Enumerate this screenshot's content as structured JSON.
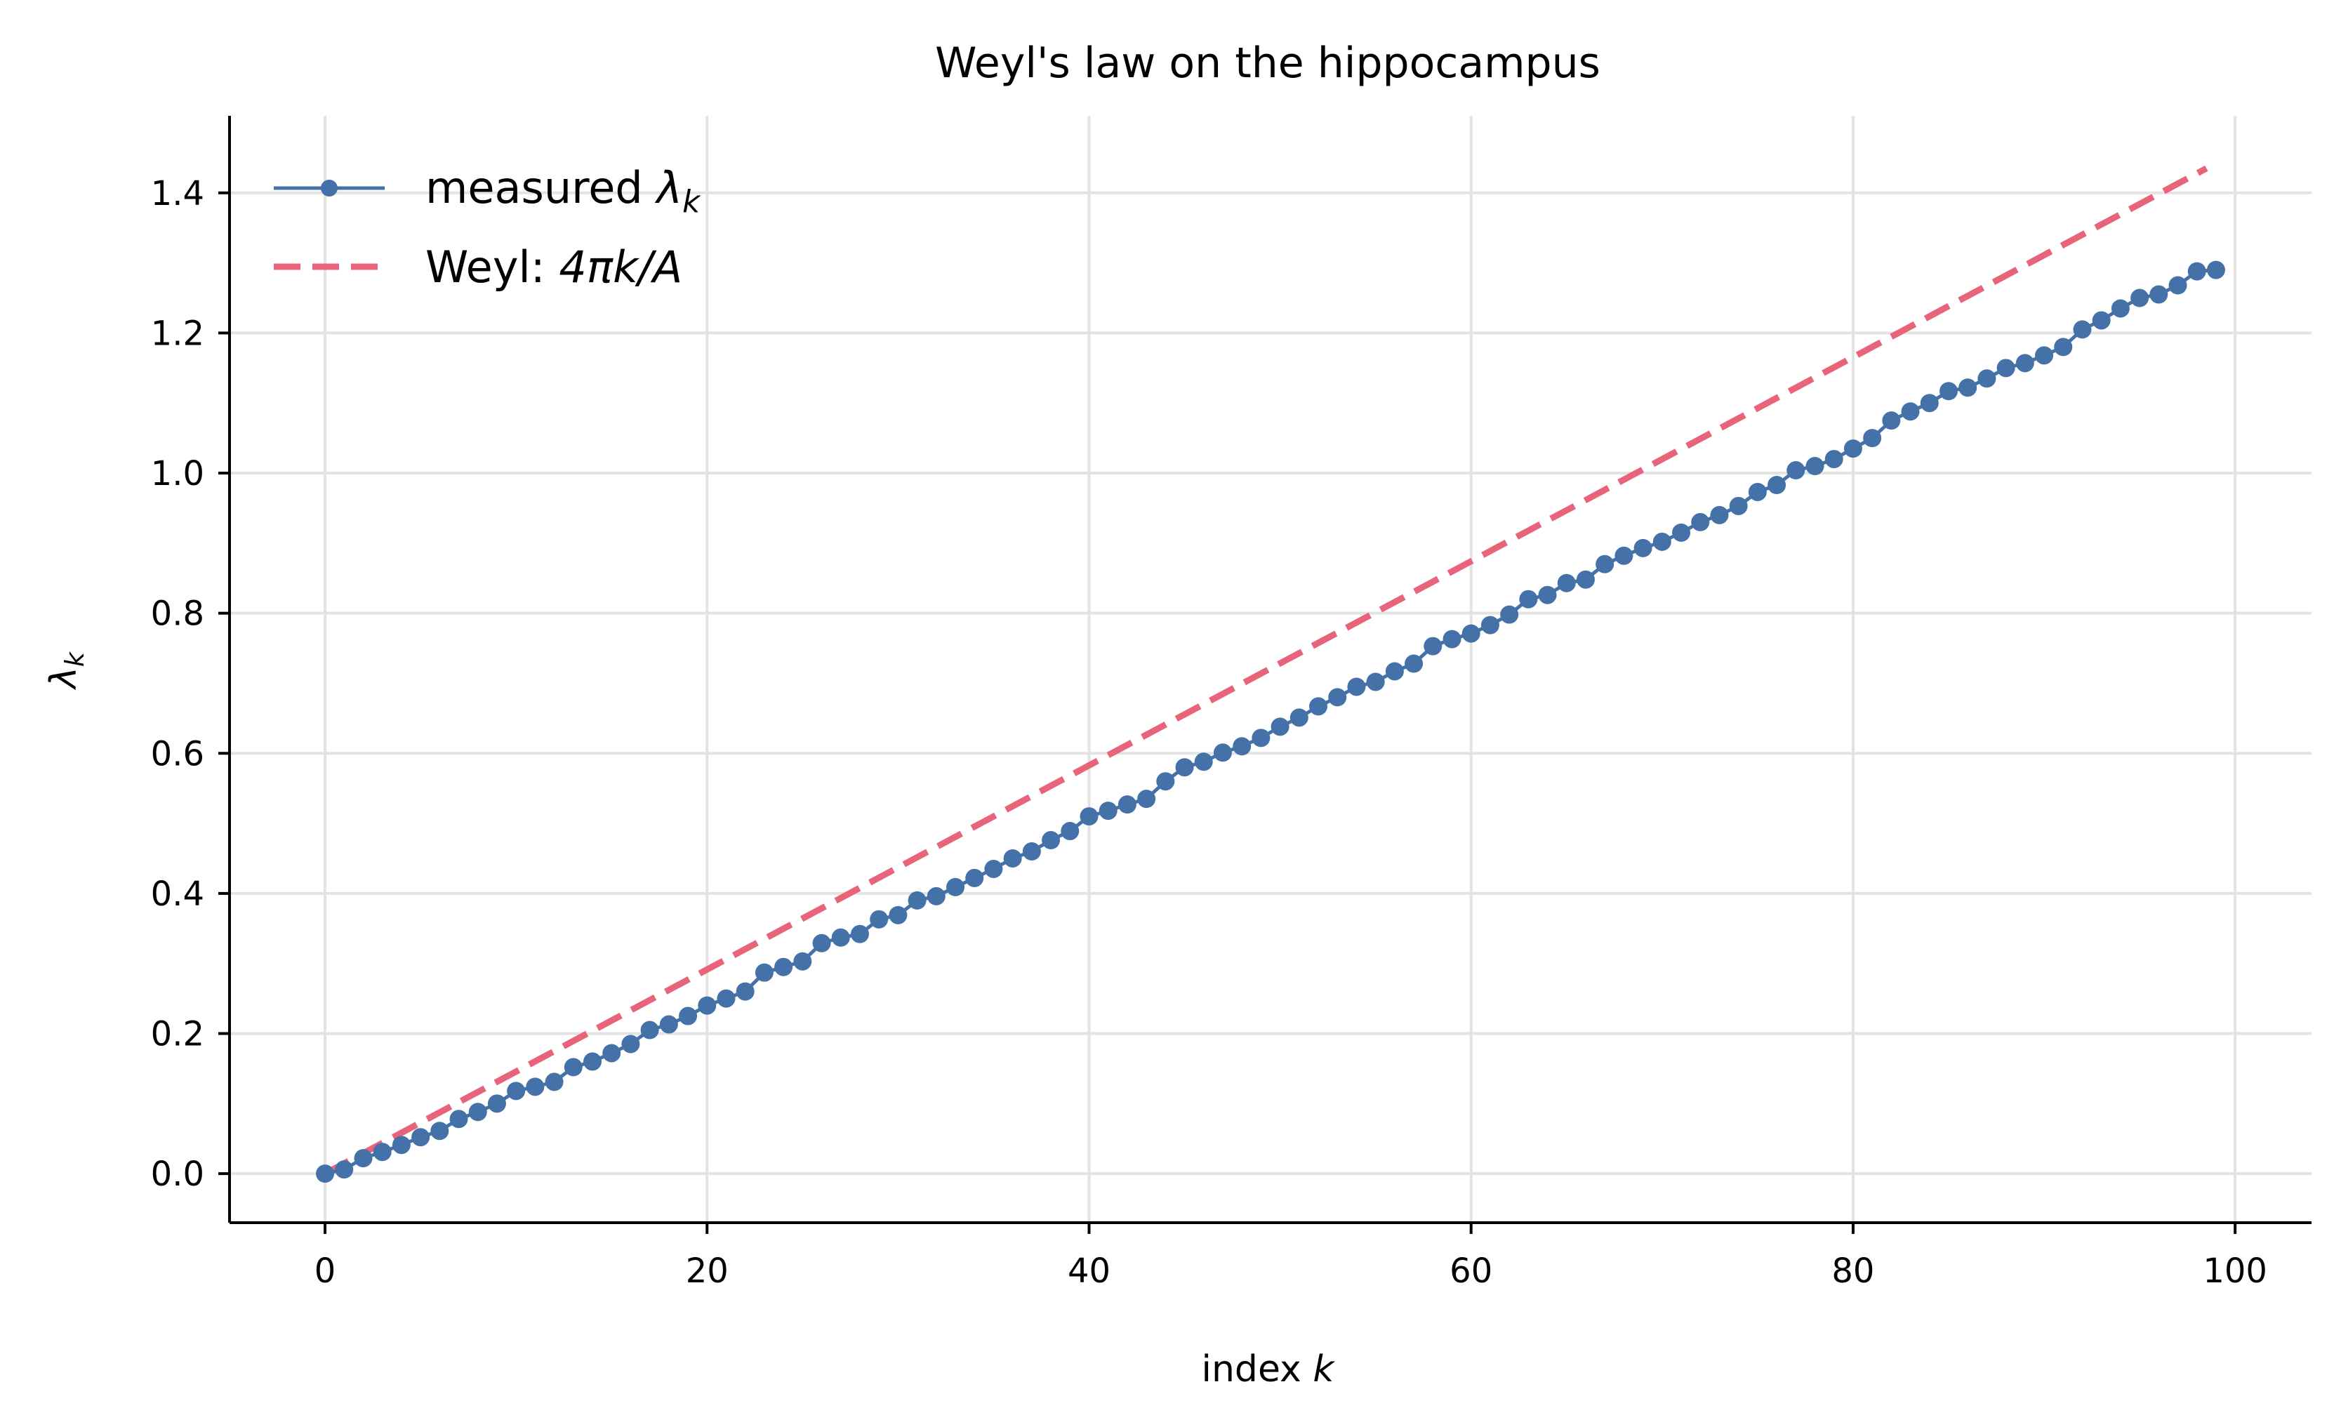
{
  "chart_data": {
    "type": "line",
    "title": "Weyl's law on the hippocampus",
    "xlabel": "index k",
    "ylabel": "λ_k",
    "xlim": [
      -5,
      104
    ],
    "ylim": [
      -0.07,
      1.51
    ],
    "x_ticks": [
      0,
      20,
      40,
      60,
      80,
      100
    ],
    "x_tick_labels": [
      "0",
      "20",
      "40",
      "60",
      "80",
      "100"
    ],
    "y_ticks": [
      0.0,
      0.2,
      0.4,
      0.6,
      0.8,
      1.0,
      1.2,
      1.4
    ],
    "y_tick_labels": [
      "0.0",
      "0.2",
      "0.4",
      "0.6",
      "0.8",
      "1.0",
      "1.2",
      "1.4"
    ],
    "grid": true,
    "legend_position": "top-left",
    "series": [
      {
        "name": "measured λ_k",
        "style": "line-with-markers",
        "color": "#4472a8",
        "x": [
          0,
          1,
          2,
          3,
          4,
          5,
          6,
          7,
          8,
          9,
          10,
          11,
          12,
          13,
          14,
          15,
          16,
          17,
          18,
          19,
          20,
          21,
          22,
          23,
          24,
          25,
          26,
          27,
          28,
          29,
          30,
          31,
          32,
          33,
          34,
          35,
          36,
          37,
          38,
          39,
          40,
          41,
          42,
          43,
          44,
          45,
          46,
          47,
          48,
          49,
          50,
          51,
          52,
          53,
          54,
          55,
          56,
          57,
          58,
          59,
          60,
          61,
          62,
          63,
          64,
          65,
          66,
          67,
          68,
          69,
          70,
          71,
          72,
          73,
          74,
          75,
          76,
          77,
          78,
          79,
          80,
          81,
          82,
          83,
          84,
          85,
          86,
          87,
          88,
          89,
          90,
          91,
          92,
          93,
          94,
          95,
          96,
          97,
          98,
          99
        ],
        "values": [
          0.0,
          0.006,
          0.022,
          0.031,
          0.041,
          0.052,
          0.061,
          0.078,
          0.088,
          0.1,
          0.118,
          0.124,
          0.131,
          0.152,
          0.16,
          0.172,
          0.185,
          0.205,
          0.213,
          0.225,
          0.24,
          0.25,
          0.26,
          0.287,
          0.295,
          0.303,
          0.329,
          0.337,
          0.342,
          0.363,
          0.369,
          0.39,
          0.396,
          0.409,
          0.422,
          0.435,
          0.45,
          0.46,
          0.476,
          0.489,
          0.51,
          0.518,
          0.527,
          0.535,
          0.56,
          0.58,
          0.588,
          0.601,
          0.61,
          0.622,
          0.638,
          0.651,
          0.667,
          0.68,
          0.695,
          0.702,
          0.717,
          0.728,
          0.753,
          0.763,
          0.771,
          0.783,
          0.798,
          0.82,
          0.826,
          0.843,
          0.848,
          0.87,
          0.882,
          0.893,
          0.902,
          0.915,
          0.93,
          0.94,
          0.953,
          0.973,
          0.983,
          1.004,
          1.01,
          1.02,
          1.035,
          1.05,
          1.075,
          1.088,
          1.1,
          1.117,
          1.122,
          1.135,
          1.15,
          1.157,
          1.168,
          1.18,
          1.205,
          1.218,
          1.235,
          1.25,
          1.255,
          1.268,
          1.288,
          1.29
        ]
      },
      {
        "name": "Weyl: 4πk/A",
        "style": "dashed",
        "color": "#e8647a",
        "x": [
          0,
          98.5
        ],
        "values": [
          0.0,
          1.435
        ]
      }
    ]
  }
}
